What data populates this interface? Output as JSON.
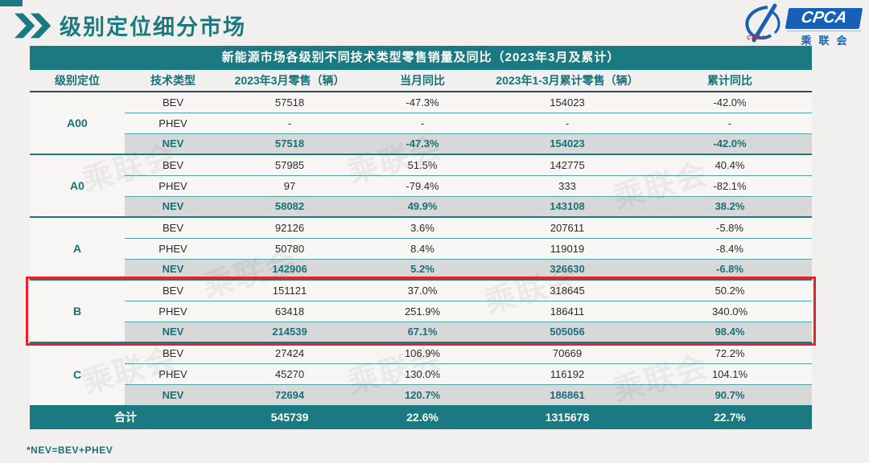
{
  "page": {
    "title": "级别定位细分市场",
    "footnote": "*NEV=BEV+PHEV"
  },
  "logo": {
    "acronym": "CPCA",
    "cn_name": "乘联会",
    "sub_text": "CPCA"
  },
  "watermark": "乘联会",
  "table": {
    "caption": "新能源市场各级别不同技术类型零售销量及同比（2023年3月及累计）",
    "columns": [
      "级别定位",
      "技术类型",
      "2023年3月零售（辆）",
      "当月同比",
      "2023年1-3月累计零售（辆）",
      "累计同比"
    ],
    "groups": [
      {
        "level": "A00",
        "highlight": false,
        "rows": [
          [
            "BEV",
            "57518",
            "-47.3%",
            "154023",
            "-42.0%"
          ],
          [
            "PHEV",
            "-",
            "-",
            "-",
            "-"
          ],
          [
            "NEV",
            "57518",
            "-47.3%",
            "154023",
            "-42.0%"
          ]
        ]
      },
      {
        "level": "A0",
        "highlight": false,
        "rows": [
          [
            "BEV",
            "57985",
            "51.5%",
            "142775",
            "40.4%"
          ],
          [
            "PHEV",
            "97",
            "-79.4%",
            "333",
            "-82.1%"
          ],
          [
            "NEV",
            "58082",
            "49.9%",
            "143108",
            "38.2%"
          ]
        ]
      },
      {
        "level": "A",
        "highlight": false,
        "rows": [
          [
            "BEV",
            "92126",
            "3.6%",
            "207611",
            "-5.8%"
          ],
          [
            "PHEV",
            "50780",
            "8.4%",
            "119019",
            "-8.4%"
          ],
          [
            "NEV",
            "142906",
            "5.2%",
            "326630",
            "-6.8%"
          ]
        ]
      },
      {
        "level": "B",
        "highlight": true,
        "rows": [
          [
            "BEV",
            "151121",
            "37.0%",
            "318645",
            "50.2%"
          ],
          [
            "PHEV",
            "63418",
            "251.9%",
            "186411",
            "340.0%"
          ],
          [
            "NEV",
            "214539",
            "67.1%",
            "505056",
            "98.4%"
          ]
        ]
      },
      {
        "level": "C",
        "highlight": false,
        "rows": [
          [
            "BEV",
            "27424",
            "106.9%",
            "70669",
            "72.2%"
          ],
          [
            "PHEV",
            "45270",
            "130.0%",
            "116192",
            "104.1%"
          ],
          [
            "NEV",
            "72694",
            "120.7%",
            "186861",
            "90.7%"
          ]
        ]
      }
    ],
    "total": {
      "label": "合计",
      "values": [
        "545739",
        "22.6%",
        "1315678",
        "22.7%"
      ]
    }
  },
  "colors": {
    "teal": "#1b7a81",
    "nev_row_gray": "#d8d8d8",
    "highlight_red": "#e5242a",
    "logo_blue": "#1660b8"
  },
  "chart_data": {
    "type": "table",
    "title": "新能源市场各级别不同技术类型零售销量及同比（2023年3月及累计）",
    "columns": [
      "级别定位",
      "技术类型",
      "2023年3月零售（辆）",
      "当月同比",
      "2023年1-3月累计零售（辆）",
      "累计同比"
    ],
    "rows": [
      [
        "A00",
        "BEV",
        "57518",
        "-47.3%",
        "154023",
        "-42.0%"
      ],
      [
        "A00",
        "PHEV",
        "-",
        "-",
        "-",
        "-"
      ],
      [
        "A00",
        "NEV",
        "57518",
        "-47.3%",
        "154023",
        "-42.0%"
      ],
      [
        "A0",
        "BEV",
        "57985",
        "51.5%",
        "142775",
        "40.4%"
      ],
      [
        "A0",
        "PHEV",
        "97",
        "-79.4%",
        "333",
        "-82.1%"
      ],
      [
        "A0",
        "NEV",
        "58082",
        "49.9%",
        "143108",
        "38.2%"
      ],
      [
        "A",
        "BEV",
        "92126",
        "3.6%",
        "207611",
        "-5.8%"
      ],
      [
        "A",
        "PHEV",
        "50780",
        "8.4%",
        "119019",
        "-8.4%"
      ],
      [
        "A",
        "NEV",
        "142906",
        "5.2%",
        "326630",
        "-6.8%"
      ],
      [
        "B",
        "BEV",
        "151121",
        "37.0%",
        "318645",
        "50.2%"
      ],
      [
        "B",
        "PHEV",
        "63418",
        "251.9%",
        "186411",
        "340.0%"
      ],
      [
        "B",
        "NEV",
        "214539",
        "67.1%",
        "505056",
        "98.4%"
      ],
      [
        "C",
        "BEV",
        "27424",
        "106.9%",
        "70669",
        "72.2%"
      ],
      [
        "C",
        "PHEV",
        "45270",
        "130.0%",
        "116192",
        "104.1%"
      ],
      [
        "C",
        "NEV",
        "72694",
        "120.7%",
        "186861",
        "90.7%"
      ],
      [
        "合计",
        "",
        "545739",
        "22.6%",
        "1315678",
        "22.7%"
      ]
    ],
    "notes": "*NEV=BEV+PHEV; B 级别行组被红框高亮"
  }
}
